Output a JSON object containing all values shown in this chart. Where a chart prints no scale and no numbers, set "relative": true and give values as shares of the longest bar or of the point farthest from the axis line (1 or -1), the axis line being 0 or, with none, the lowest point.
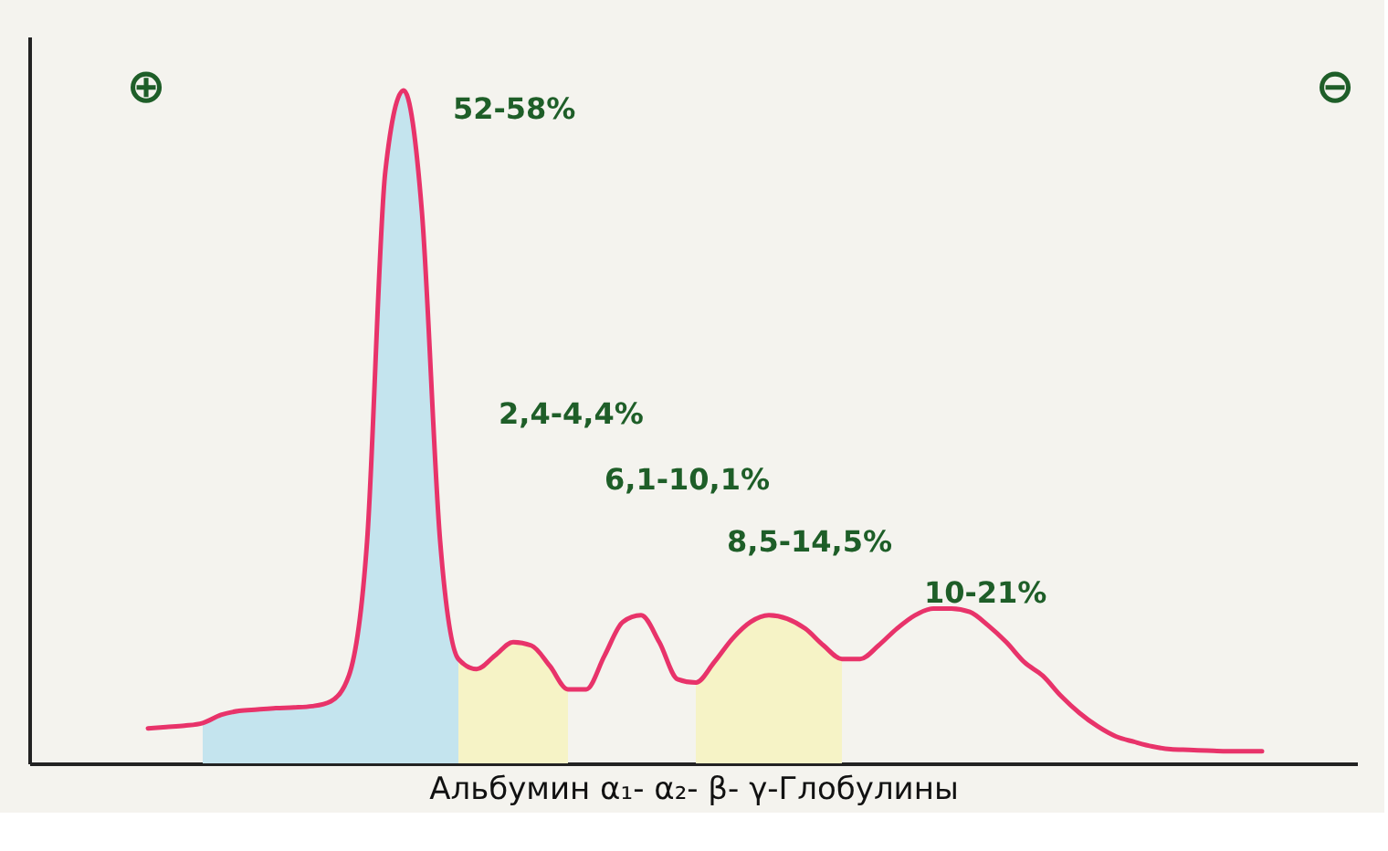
{
  "chart_data": {
    "type": "line",
    "relative": true,
    "xlabel": "Альбумин α₁- α₂- β- γ-Глобулины",
    "categories": [
      null,
      null,
      null,
      null,
      null,
      null,
      null,
      null,
      null,
      null,
      null,
      null,
      null,
      null,
      null,
      null,
      null,
      null,
      null,
      null,
      null,
      null,
      null,
      null,
      null,
      null,
      null,
      null,
      null,
      null,
      null,
      null,
      null,
      null,
      null,
      null,
      null,
      null,
      null,
      null,
      null,
      null,
      null,
      null,
      null,
      null,
      null,
      null,
      null,
      null,
      null,
      null,
      null,
      null,
      null,
      null,
      null,
      null,
      null,
      null,
      null,
      null
    ],
    "series": [
      {
        "type": "area",
        "color": "#c4e4ee",
        "values": [
          null,
          null,
          null,
          0.06,
          0.072,
          0.078,
          0.08,
          0.082,
          0.083,
          0.085,
          0.092,
          0.13,
          0.33,
          0.88,
          1.0,
          0.82,
          0.33,
          0.155,
          null,
          null,
          null,
          null,
          null,
          null,
          null,
          null,
          null,
          null,
          null,
          null,
          null,
          null,
          null,
          null,
          null,
          null,
          null,
          null,
          null,
          null,
          null,
          null,
          null,
          null,
          null,
          null,
          null,
          null,
          null,
          null,
          null,
          null,
          null,
          null,
          null,
          null,
          null,
          null,
          null,
          null,
          null,
          null
        ]
      },
      {
        "type": "area",
        "color": "#f6f3c6",
        "values": [
          null,
          null,
          null,
          null,
          null,
          null,
          null,
          null,
          null,
          null,
          null,
          null,
          null,
          null,
          null,
          null,
          null,
          0.155,
          0.14,
          0.16,
          0.18,
          0.175,
          0.145,
          0.11,
          null,
          null,
          null,
          null,
          null,
          null,
          null,
          null,
          null,
          null,
          null,
          null,
          null,
          null,
          null,
          null,
          null,
          null,
          null,
          null,
          null,
          null,
          null,
          null,
          null,
          null,
          null,
          null,
          null,
          null,
          null,
          null,
          null,
          null,
          null,
          null,
          null,
          null
        ]
      },
      {
        "type": "area",
        "color": "#f6f3c6",
        "values": [
          null,
          null,
          null,
          null,
          null,
          null,
          null,
          null,
          null,
          null,
          null,
          null,
          null,
          null,
          null,
          null,
          null,
          null,
          null,
          null,
          null,
          null,
          null,
          null,
          null,
          null,
          null,
          null,
          null,
          null,
          0.12,
          0.15,
          0.185,
          0.21,
          0.22,
          0.215,
          0.2,
          0.175,
          0.155,
          null,
          null,
          null,
          null,
          null,
          null,
          null,
          null,
          null,
          null,
          null,
          null,
          null,
          null,
          null,
          null,
          null,
          null,
          null,
          null,
          null,
          null,
          null
        ]
      },
      {
        "color": "#e8336a",
        "values": [
          0.052,
          0.054,
          0.056,
          0.06,
          0.072,
          0.078,
          0.08,
          0.082,
          0.083,
          0.085,
          0.092,
          0.13,
          0.33,
          0.88,
          1.0,
          0.82,
          0.33,
          0.155,
          0.14,
          0.16,
          0.18,
          0.175,
          0.145,
          0.11,
          0.11,
          0.16,
          0.21,
          0.22,
          0.18,
          0.125,
          0.12,
          0.15,
          0.185,
          0.21,
          0.22,
          0.215,
          0.2,
          0.175,
          0.155,
          0.155,
          0.175,
          0.2,
          0.22,
          0.23,
          0.23,
          0.225,
          0.205,
          0.18,
          0.15,
          0.13,
          0.1,
          0.075,
          0.055,
          0.04,
          0.032,
          0.025,
          0.021,
          0.02,
          0.019,
          0.018,
          0.018,
          0.018
        ]
      }
    ],
    "annotations": [
      "⊕",
      "⊖",
      "52-58%",
      "2,4-4,4%",
      "6,1-10,1%",
      "8,5-14,5%",
      "10-21%"
    ]
  }
}
